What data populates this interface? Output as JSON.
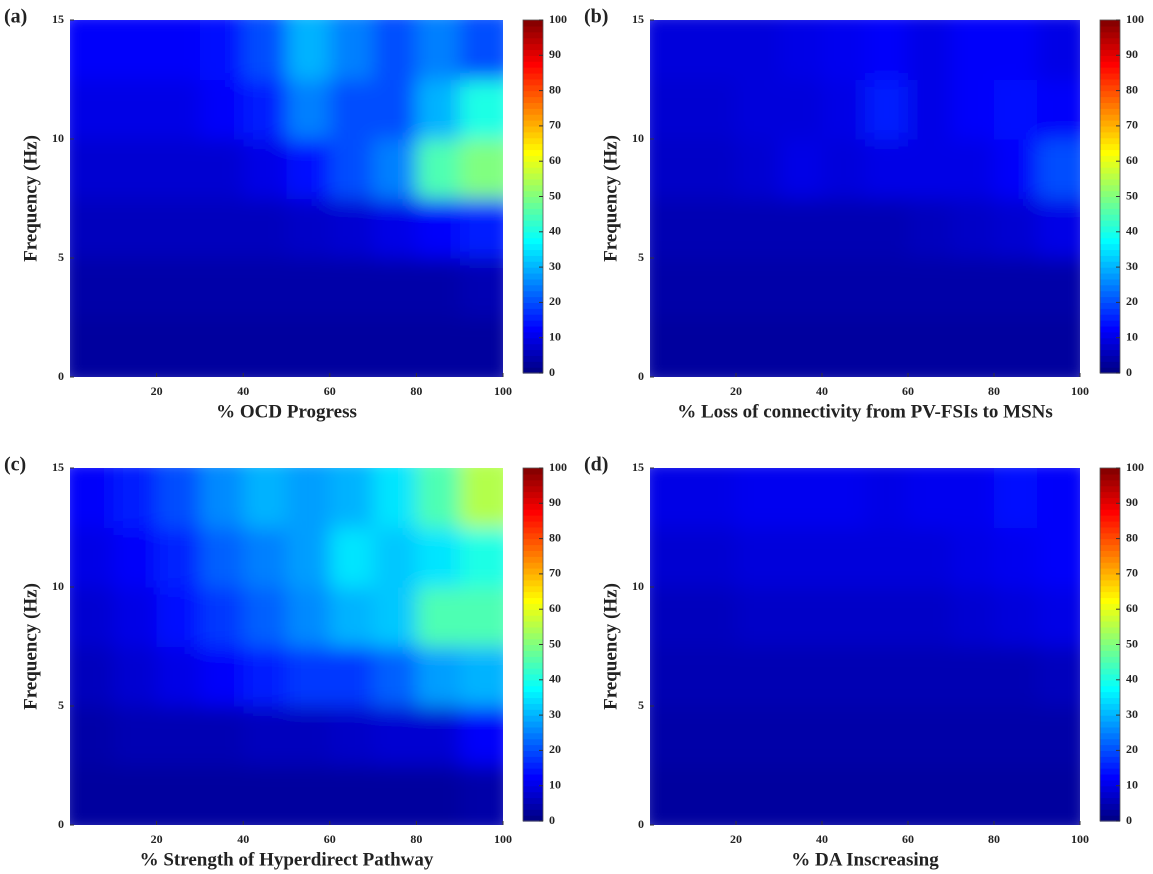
{
  "chart_data": [
    {
      "type": "heatmap",
      "label": "(a)",
      "xlabel": "%  OCD Progress",
      "ylabel": "Frequency (Hz)",
      "colormap": "jet",
      "xbins": [
        0,
        10,
        20,
        30,
        40,
        50,
        60,
        70,
        80,
        90,
        100
      ],
      "ybins": [
        0,
        2.5,
        5,
        7.5,
        10,
        12.5,
        15
      ],
      "z": [
        [
          3,
          3,
          3,
          3,
          3,
          3,
          3,
          3,
          3,
          3
        ],
        [
          4,
          4,
          4,
          4,
          4,
          4,
          4,
          4,
          4,
          5
        ],
        [
          6,
          6,
          6,
          6,
          6,
          7,
          8,
          10,
          12,
          15
        ],
        [
          8,
          8,
          8,
          8,
          10,
          14,
          20,
          25,
          45,
          50
        ],
        [
          10,
          10,
          10,
          12,
          15,
          25,
          20,
          20,
          30,
          40
        ],
        [
          12,
          12,
          12,
          14,
          20,
          30,
          25,
          20,
          25,
          20
        ]
      ],
      "xlim": [
        0,
        100
      ],
      "xticks": [
        20,
        40,
        60,
        80,
        100
      ],
      "ylim": [
        0,
        15
      ],
      "yticks": [
        0,
        5,
        10,
        15
      ],
      "clim": [
        0,
        100
      ],
      "cticks": [
        0,
        10,
        20,
        30,
        40,
        50,
        60,
        70,
        80,
        90,
        100
      ]
    },
    {
      "type": "heatmap",
      "label": "(b)",
      "xlabel": "% Loss of connectivity from PV-FSIs to MSNs",
      "ylabel": "Frequency (Hz)",
      "colormap": "jet",
      "xbins": [
        0,
        10,
        20,
        30,
        40,
        50,
        60,
        70,
        80,
        90,
        100
      ],
      "ybins": [
        0,
        2.5,
        5,
        7.5,
        10,
        12.5,
        15
      ],
      "z": [
        [
          3,
          3,
          3,
          3,
          3,
          3,
          3,
          3,
          3,
          3
        ],
        [
          4,
          4,
          4,
          4,
          4,
          4,
          4,
          4,
          4,
          4
        ],
        [
          5,
          5,
          5,
          5,
          5,
          5,
          6,
          7,
          8,
          10
        ],
        [
          7,
          7,
          8,
          10,
          9,
          10,
          10,
          10,
          12,
          20
        ],
        [
          8,
          8,
          9,
          9,
          10,
          15,
          10,
          12,
          14,
          12
        ],
        [
          9,
          9,
          9,
          10,
          11,
          12,
          10,
          12,
          12,
          10
        ]
      ],
      "xlim": [
        0,
        100
      ],
      "xticks": [
        20,
        40,
        60,
        80,
        100
      ],
      "ylim": [
        0,
        15
      ],
      "yticks": [
        0,
        5,
        10,
        15
      ],
      "clim": [
        0,
        100
      ],
      "cticks": [
        0,
        10,
        20,
        30,
        40,
        50,
        60,
        70,
        80,
        90,
        100
      ]
    },
    {
      "type": "heatmap",
      "label": "(c)",
      "xlabel": "%  Strength of Hyperdirect Pathway",
      "ylabel": "Frequency (Hz)",
      "colormap": "jet",
      "xbins": [
        0,
        10,
        20,
        30,
        40,
        50,
        60,
        70,
        80,
        90,
        100
      ],
      "ybins": [
        0,
        2.5,
        5,
        7.5,
        10,
        12.5,
        15
      ],
      "z": [
        [
          3,
          3,
          3,
          3,
          3,
          3,
          3,
          3,
          3,
          4
        ],
        [
          4,
          5,
          5,
          5,
          6,
          6,
          7,
          8,
          8,
          12
        ],
        [
          6,
          8,
          10,
          12,
          15,
          18,
          18,
          22,
          28,
          30
        ],
        [
          8,
          10,
          14,
          18,
          22,
          26,
          30,
          32,
          45,
          45
        ],
        [
          10,
          12,
          16,
          22,
          25,
          28,
          35,
          32,
          35,
          40
        ],
        [
          12,
          15,
          20,
          26,
          30,
          28,
          30,
          35,
          45,
          55
        ]
      ],
      "xlim": [
        0,
        100
      ],
      "xticks": [
        20,
        40,
        60,
        80,
        100
      ],
      "ylim": [
        0,
        15
      ],
      "yticks": [
        0,
        5,
        10,
        15
      ],
      "clim": [
        0,
        100
      ],
      "cticks": [
        0,
        10,
        20,
        30,
        40,
        50,
        60,
        70,
        80,
        90,
        100
      ]
    },
    {
      "type": "heatmap",
      "label": "(d)",
      "xlabel": "% DA Inscreasing",
      "ylabel": "Frequency (Hz)",
      "colormap": "jet",
      "xbins": [
        0,
        10,
        20,
        30,
        40,
        50,
        60,
        70,
        80,
        90,
        100
      ],
      "ybins": [
        0,
        2.5,
        5,
        7.5,
        10,
        12.5,
        15
      ],
      "z": [
        [
          3,
          3,
          3,
          3,
          3,
          3,
          3,
          3,
          3,
          3
        ],
        [
          4,
          4,
          4,
          4,
          4,
          4,
          4,
          4,
          4,
          4
        ],
        [
          5,
          5,
          5,
          5,
          5,
          5,
          5,
          5,
          5,
          6
        ],
        [
          6,
          6,
          7,
          7,
          7,
          7,
          7,
          8,
          9,
          10
        ],
        [
          8,
          8,
          9,
          9,
          9,
          9,
          9,
          10,
          11,
          12
        ],
        [
          10,
          10,
          11,
          11,
          11,
          10,
          11,
          11,
          14,
          12
        ]
      ],
      "xlim": [
        0,
        100
      ],
      "xticks": [
        20,
        40,
        60,
        80,
        100
      ],
      "ylim": [
        0,
        15
      ],
      "yticks": [
        0,
        5,
        10,
        15
      ],
      "clim": [
        0,
        100
      ],
      "cticks": [
        0,
        10,
        20,
        30,
        40,
        50,
        60,
        70,
        80,
        90,
        100
      ]
    }
  ]
}
